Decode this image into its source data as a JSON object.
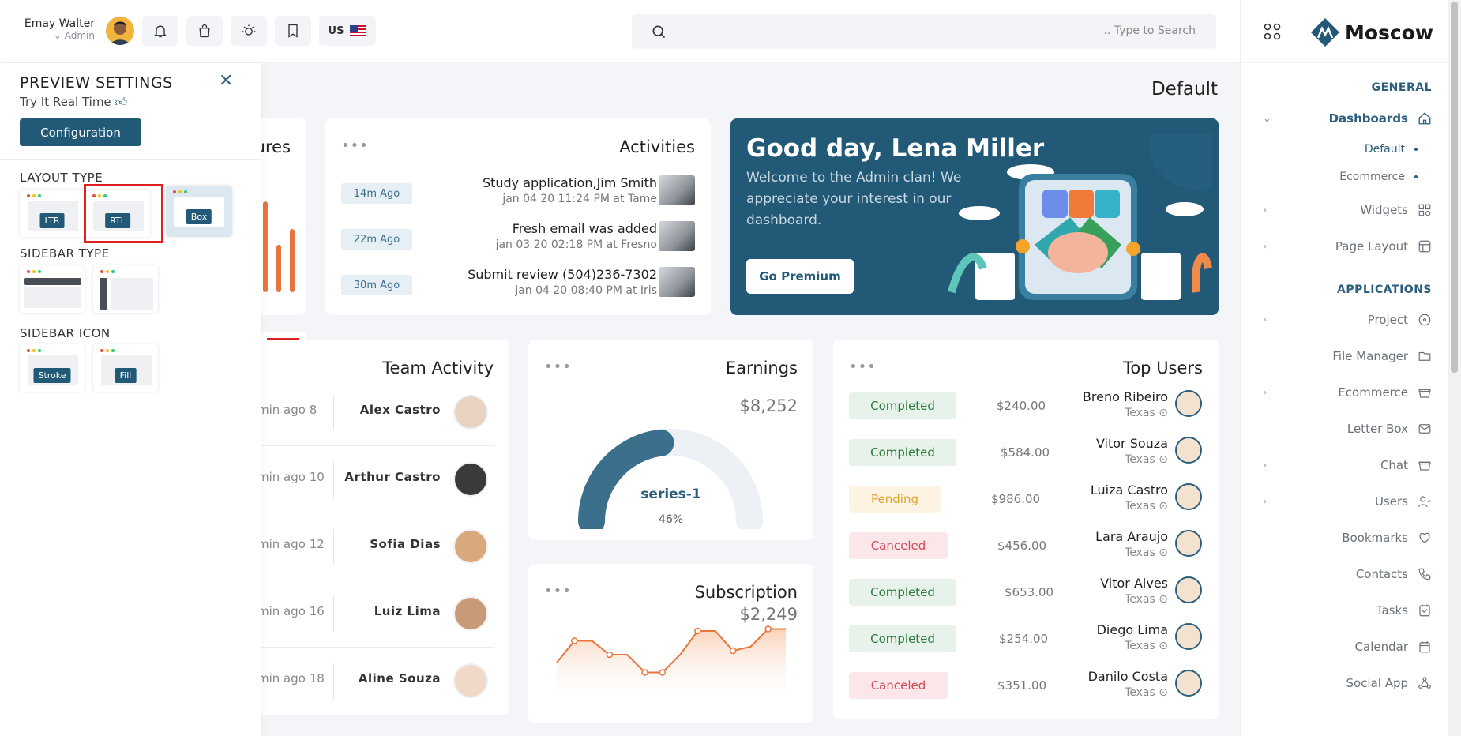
{
  "header": {
    "user_name": "Emay Walter",
    "user_role": "Admin",
    "language": "US",
    "search_placeholder": ".. Type to Search"
  },
  "brand": {
    "name": "Moscow",
    "accent": "#215976"
  },
  "page_title": "Default",
  "sidebar": {
    "section_general": "GENERAL",
    "section_applications": "APPLICATIONS",
    "dashboards": "Dashboards",
    "sub_default": "Default",
    "sub_ecommerce": "Ecommerce",
    "items": [
      {
        "label": "Widgets",
        "icon": "widgets-icon"
      },
      {
        "label": "Page Layout",
        "icon": "layout-icon"
      },
      {
        "label": "Project",
        "icon": "project-icon"
      },
      {
        "label": "File Manager",
        "icon": "folder-icon"
      },
      {
        "label": "Ecommerce",
        "icon": "basket-icon"
      },
      {
        "label": "Letter Box",
        "icon": "mail-icon"
      },
      {
        "label": "Chat",
        "icon": "chat-icon"
      },
      {
        "label": "Users",
        "icon": "users-icon"
      },
      {
        "label": "Bookmarks",
        "icon": "heart-icon"
      },
      {
        "label": "Contacts",
        "icon": "phone-icon"
      },
      {
        "label": "Tasks",
        "icon": "tasks-icon"
      },
      {
        "label": "Calendar",
        "icon": "calendar-icon"
      },
      {
        "label": "Social App",
        "icon": "social-icon"
      }
    ]
  },
  "preview": {
    "title": "PREVIEW SETTINGS",
    "subtitle": "Try It Real Time",
    "config_button": "Configuration",
    "layout_type": "LAYOUT TYPE",
    "layout_options": [
      "LTR",
      "RTL",
      "Box"
    ],
    "sidebar_type": "SIDEBAR TYPE",
    "sidebar_icon": "SIDEBAR ICON",
    "icon_options": [
      "Stroke",
      "Fill"
    ]
  },
  "partial_card_title": "ures",
  "activities": {
    "title": "Activities",
    "items": [
      {
        "ago": "14m Ago",
        "title": "Study application,Jim Smith",
        "sub": "jan 04 20 11:24 PM at Tame"
      },
      {
        "ago": "22m Ago",
        "title": "Fresh email was added",
        "sub": "jan 03 20 02:18 PM at Fresno"
      },
      {
        "ago": "30m Ago",
        "title": "Submit review (504)236-7302",
        "sub": "jan 04 20 08:40 PM at Iris"
      }
    ]
  },
  "welcome": {
    "title": "Good day, Lena Miller",
    "text": "Welcome to the Admin clan! We appreciate your interest in our dashboard.",
    "button": "Go Premium"
  },
  "team": {
    "title": "Team Activity",
    "items": [
      {
        "time": "min ago 8",
        "name": "Alex Castro"
      },
      {
        "time": "min ago 10",
        "name": "Arthur Castro"
      },
      {
        "time": "min ago 12",
        "name": "Sofia Dias"
      },
      {
        "time": "min ago 16",
        "name": "Luiz Lima"
      },
      {
        "time": "min ago 18",
        "name": "Aline Souza"
      }
    ]
  },
  "earnings": {
    "title": "Earnings",
    "value": "$8,252",
    "series": "series-1",
    "percent_label": "46%",
    "percent": 46
  },
  "subscription": {
    "title": "Subscription",
    "value": "$2,249",
    "points": [
      40,
      62,
      62,
      48,
      48,
      30,
      30,
      48,
      72,
      72,
      52,
      56,
      74,
      74
    ]
  },
  "top_users": {
    "title": "Top Users",
    "rows": [
      {
        "status": "Completed",
        "amount": "$240.00",
        "name": "Breno Ribeiro",
        "loc": "Texas"
      },
      {
        "status": "Completed",
        "amount": "$584.00",
        "name": "Vitor Souza",
        "loc": "Texas"
      },
      {
        "status": "Pending",
        "amount": "$986.00",
        "name": "Luiza Castro",
        "loc": "Texas"
      },
      {
        "status": "Canceled",
        "amount": "$456.00",
        "name": "Lara Araujo",
        "loc": "Texas"
      },
      {
        "status": "Completed",
        "amount": "$653.00",
        "name": "Vitor Alves",
        "loc": "Texas"
      },
      {
        "status": "Completed",
        "amount": "$254.00",
        "name": "Diego Lima",
        "loc": "Texas"
      },
      {
        "status": "Canceled",
        "amount": "$351.00",
        "name": "Danilo Costa",
        "loc": "Texas"
      }
    ]
  }
}
